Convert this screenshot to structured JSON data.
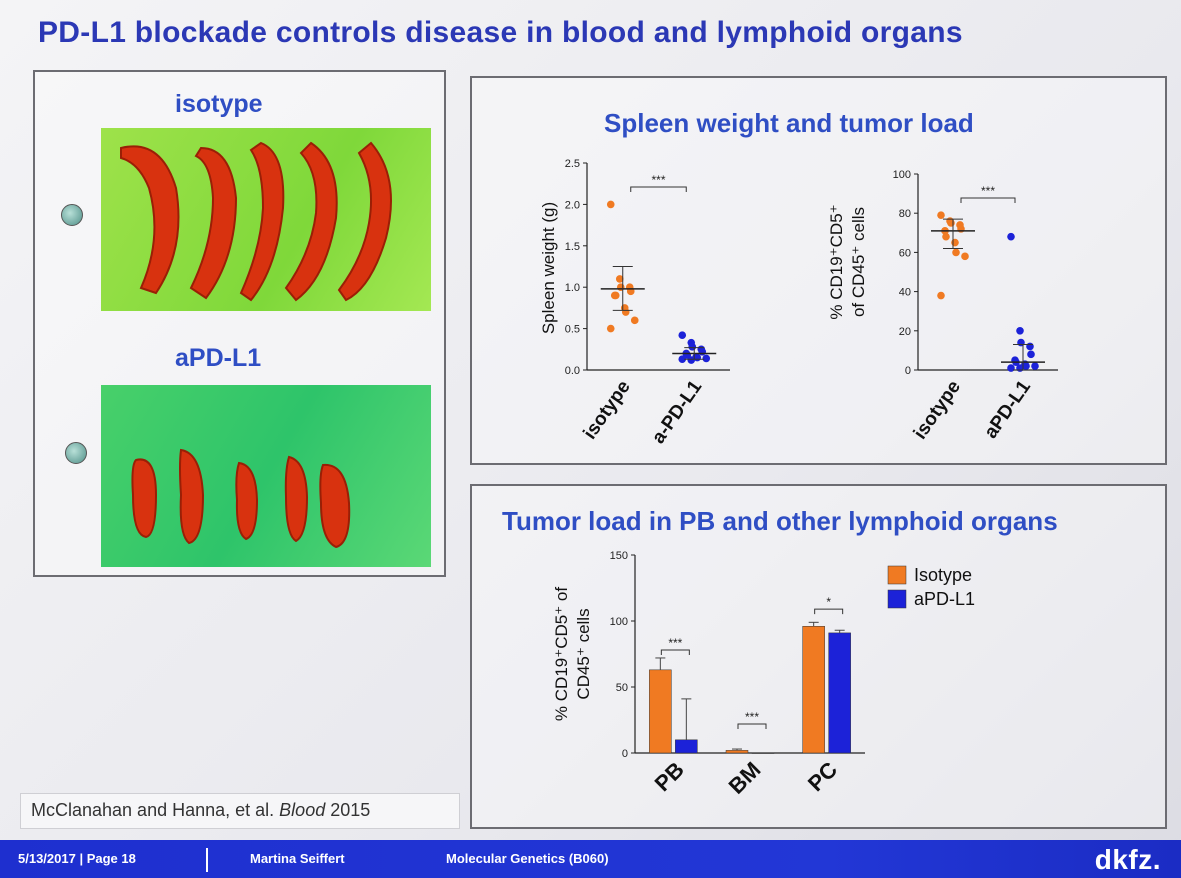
{
  "slide": {
    "title": "PD-L1 blockade controls disease in blood and lymphoid organs"
  },
  "photos": {
    "isotype_label": "isotype",
    "apdl1_label": "aPD-L1"
  },
  "citation": {
    "authors": "McClanahan and Hanna, et al. ",
    "journal": "Blood",
    "year": " 2015"
  },
  "footer": {
    "date_page": "5/13/2017 |  Page 18",
    "author": "Martina Seiffert",
    "department": "Molecular Genetics (B060)",
    "logo": "dkfz."
  },
  "colors": {
    "title": "#2b38b5",
    "orange": "#f07a22",
    "blue": "#1c22d8",
    "footer": "#2237d6"
  },
  "chart_data": [
    {
      "id": "spleen-weight",
      "type": "scatter",
      "title": "Spleen weight and tumor load",
      "ylabel": "Spleen weight (g)",
      "ylim": [
        0,
        2.5
      ],
      "yticks": [
        "0.0",
        "0.5",
        "1.0",
        "1.5",
        "2.0",
        "2.5"
      ],
      "categories": [
        "isotype",
        "a-PD-L1"
      ],
      "significance": "***",
      "series": [
        {
          "color": "#f07a22",
          "points": [
            2.0,
            1.1,
            1.0,
            1.0,
            0.95,
            0.9,
            0.9,
            0.75,
            0.7,
            0.6,
            0.5
          ],
          "mean": 0.98,
          "sd_high": 1.25,
          "sd_low": 0.72
        },
        {
          "color": "#1c22d8",
          "points": [
            0.42,
            0.33,
            0.28,
            0.25,
            0.22,
            0.2,
            0.18,
            0.16,
            0.15,
            0.14,
            0.13,
            0.12
          ],
          "mean": 0.2,
          "sd_high": 0.27,
          "sd_low": 0.13
        }
      ]
    },
    {
      "id": "cd19-spleen",
      "type": "scatter",
      "ylabel_line1": "% CD19⁺CD5⁺",
      "ylabel_line2": "of CD45⁺ cells",
      "ylim": [
        0,
        100
      ],
      "yticks": [
        "0",
        "20",
        "40",
        "60",
        "80",
        "100"
      ],
      "categories": [
        "isotype",
        "aPD-L1"
      ],
      "significance": "***",
      "series": [
        {
          "color": "#f07a22",
          "points": [
            79,
            76,
            75,
            74,
            72,
            71,
            68,
            65,
            60,
            58,
            38
          ],
          "mean": 71,
          "sd_high": 77,
          "sd_low": 62
        },
        {
          "color": "#1c22d8",
          "points": [
            68,
            20,
            14,
            12,
            8,
            5,
            4,
            3,
            2,
            2,
            1,
            1
          ],
          "mean": 4,
          "sd_high": 13,
          "sd_low": 0
        }
      ]
    },
    {
      "id": "tumor-load-organs",
      "type": "bar",
      "title": "Tumor load in PB and other lymphoid organs",
      "ylabel_line1": "% CD19⁺CD5⁺ of",
      "ylabel_line2": "CD45⁺ cells",
      "ylim": [
        0,
        150
      ],
      "yticks": [
        "0",
        "50",
        "100",
        "150"
      ],
      "categories": [
        "PB",
        "BM",
        "PC"
      ],
      "significance": [
        "***",
        "***",
        "*"
      ],
      "legend_position": "top-right",
      "series": [
        {
          "name": "Isotype",
          "color": "#f07a22",
          "values": [
            63,
            2,
            96
          ],
          "errors": [
            9,
            1,
            3
          ]
        },
        {
          "name": "aPD-L1",
          "color": "#1c22d8",
          "values": [
            10,
            0,
            91
          ],
          "errors": [
            31,
            0,
            2
          ]
        }
      ]
    }
  ]
}
